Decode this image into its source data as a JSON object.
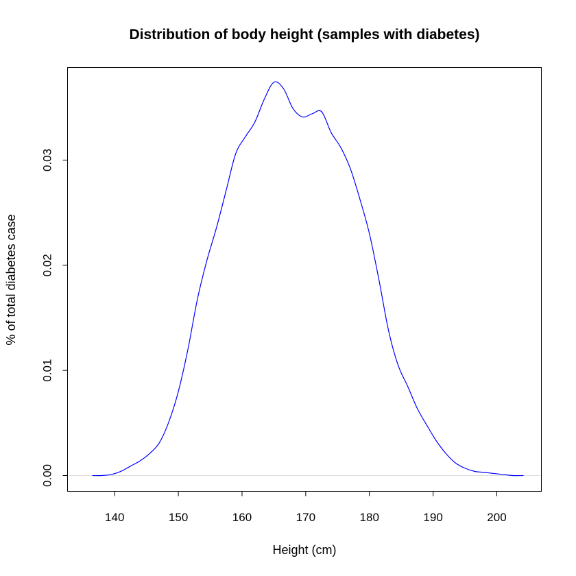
{
  "chart_data": {
    "type": "line",
    "title": "Distribution of body height (samples with diabetes)",
    "xlabel": "Height (cm)",
    "ylabel": "% of total diabetes case",
    "xlim": [
      132.6,
      207.0
    ],
    "ylim": [
      -0.0015,
      0.0388
    ],
    "xticks": [
      140,
      150,
      160,
      170,
      180,
      190,
      200
    ],
    "yticks": [
      0.0,
      0.01,
      0.02,
      0.03
    ],
    "ytick_labels": [
      "0.00",
      "0.01",
      "0.02",
      "0.03"
    ],
    "grid": false,
    "legend": "none",
    "baseline": 0,
    "series": [
      {
        "color": "#0000ff",
        "x": [
          136.5,
          138.0,
          139.5,
          141.0,
          142.5,
          144.0,
          145.5,
          147.0,
          148.5,
          150.0,
          151.5,
          153.0,
          154.5,
          156.0,
          157.5,
          159.0,
          160.5,
          162.0,
          163.5,
          165.0,
          166.5,
          168.0,
          169.5,
          171.0,
          172.5,
          174.0,
          175.5,
          177.0,
          178.5,
          180.0,
          181.5,
          183.0,
          184.5,
          186.0,
          187.5,
          189.0,
          190.5,
          192.0,
          193.5,
          195.0,
          196.5,
          198.0,
          199.5,
          201.0,
          202.5,
          204.2
        ],
        "y": [
          0.0,
          0.0,
          0.0001,
          0.0004,
          0.0009,
          0.0014,
          0.0021,
          0.0031,
          0.0051,
          0.008,
          0.012,
          0.0168,
          0.0205,
          0.0236,
          0.0271,
          0.0306,
          0.0322,
          0.0336,
          0.0358,
          0.0374,
          0.0368,
          0.0349,
          0.0341,
          0.0344,
          0.0346,
          0.0326,
          0.0312,
          0.0292,
          0.0263,
          0.023,
          0.0186,
          0.0138,
          0.0105,
          0.0085,
          0.0064,
          0.0048,
          0.0033,
          0.0021,
          0.0012,
          0.0007,
          0.0004,
          0.0003,
          0.0002,
          0.0001,
          0.0,
          0.0
        ]
      }
    ]
  }
}
